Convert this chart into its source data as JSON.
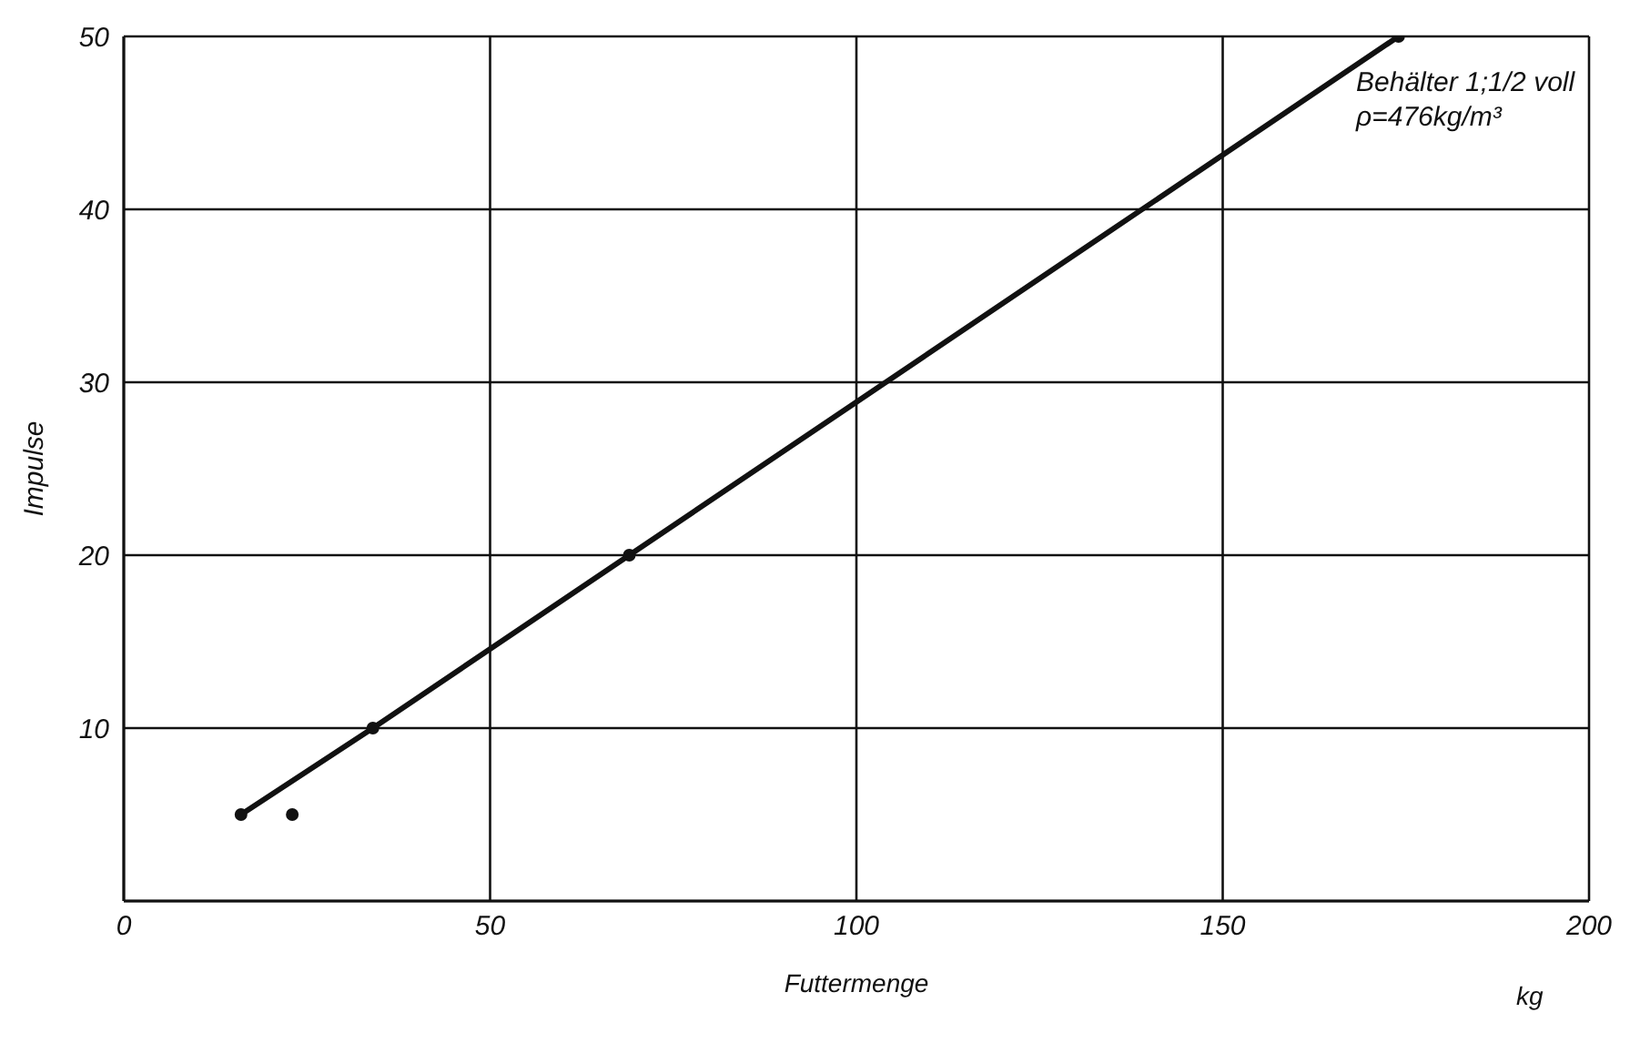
{
  "chart_data": {
    "type": "line",
    "xlabel": "Futtermenge",
    "ylabel": "Impulse",
    "annotations": [
      "Behälter 1;1/2 voll",
      "ρ=476kg/m³",
      "kg"
    ],
    "series": [
      {
        "color": "#111111",
        "x": [
          16,
          34,
          69,
          174
        ],
        "values": [
          5,
          10,
          20,
          50
        ],
        "marker": "circle"
      },
      {
        "type": "scatter",
        "color": "#111111",
        "x": [
          23
        ],
        "values": [
          5
        ],
        "marker": "circle"
      }
    ],
    "xlim": [
      0,
      200
    ],
    "xticks": [
      0,
      50,
      100,
      150,
      200
    ],
    "ylim": [
      0,
      50
    ],
    "yticks": [
      10,
      20,
      30,
      40,
      50
    ],
    "grid": true
  }
}
